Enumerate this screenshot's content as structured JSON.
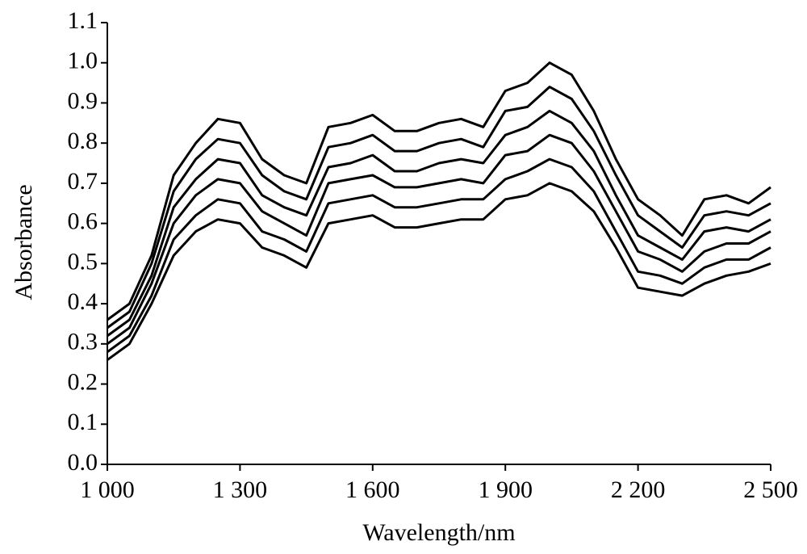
{
  "chart_data": {
    "type": "line",
    "x_label": "Wavelength/nm",
    "y_label": "Absorbance",
    "x": [
      1000,
      1050,
      1100,
      1150,
      1200,
      1250,
      1300,
      1350,
      1400,
      1450,
      1500,
      1550,
      1600,
      1650,
      1700,
      1750,
      1800,
      1850,
      1900,
      1950,
      2000,
      2050,
      2100,
      2150,
      2200,
      2250,
      2300,
      2350,
      2400,
      2450,
      2500
    ],
    "series": [
      {
        "color": "#000000",
        "values": [
          0.36,
          0.4,
          0.52,
          0.72,
          0.8,
          0.86,
          0.85,
          0.76,
          0.72,
          0.7,
          0.84,
          0.85,
          0.87,
          0.83,
          0.83,
          0.85,
          0.86,
          0.84,
          0.93,
          0.95,
          1.0,
          0.97,
          0.88,
          0.76,
          0.66,
          0.62,
          0.57,
          0.66,
          0.67,
          0.65,
          0.69
        ]
      },
      {
        "color": "#000000",
        "values": [
          0.34,
          0.38,
          0.5,
          0.68,
          0.76,
          0.81,
          0.8,
          0.72,
          0.68,
          0.66,
          0.79,
          0.8,
          0.82,
          0.78,
          0.78,
          0.8,
          0.81,
          0.79,
          0.88,
          0.89,
          0.94,
          0.91,
          0.83,
          0.72,
          0.62,
          0.58,
          0.54,
          0.62,
          0.63,
          0.62,
          0.65
        ]
      },
      {
        "color": "#000000",
        "values": [
          0.32,
          0.36,
          0.47,
          0.64,
          0.71,
          0.76,
          0.75,
          0.67,
          0.64,
          0.62,
          0.74,
          0.75,
          0.77,
          0.73,
          0.73,
          0.75,
          0.76,
          0.75,
          0.82,
          0.84,
          0.88,
          0.85,
          0.78,
          0.67,
          0.57,
          0.54,
          0.51,
          0.58,
          0.59,
          0.58,
          0.61
        ]
      },
      {
        "color": "#000000",
        "values": [
          0.3,
          0.34,
          0.45,
          0.6,
          0.67,
          0.71,
          0.7,
          0.63,
          0.6,
          0.57,
          0.7,
          0.71,
          0.72,
          0.69,
          0.69,
          0.7,
          0.71,
          0.7,
          0.77,
          0.78,
          0.82,
          0.8,
          0.73,
          0.63,
          0.53,
          0.51,
          0.48,
          0.53,
          0.55,
          0.55,
          0.58
        ]
      },
      {
        "color": "#000000",
        "values": [
          0.28,
          0.32,
          0.42,
          0.56,
          0.62,
          0.66,
          0.65,
          0.58,
          0.56,
          0.53,
          0.65,
          0.66,
          0.67,
          0.64,
          0.64,
          0.65,
          0.66,
          0.66,
          0.71,
          0.73,
          0.76,
          0.74,
          0.68,
          0.58,
          0.48,
          0.47,
          0.45,
          0.49,
          0.51,
          0.51,
          0.54
        ]
      },
      {
        "color": "#000000",
        "values": [
          0.26,
          0.3,
          0.4,
          0.52,
          0.58,
          0.61,
          0.6,
          0.54,
          0.52,
          0.49,
          0.6,
          0.61,
          0.62,
          0.59,
          0.59,
          0.6,
          0.61,
          0.61,
          0.66,
          0.67,
          0.7,
          0.68,
          0.63,
          0.54,
          0.44,
          0.43,
          0.42,
          0.45,
          0.47,
          0.48,
          0.5
        ]
      }
    ],
    "xlim": [
      1000,
      2500
    ],
    "xticks": [
      {
        "value": 1000,
        "label": "1 000"
      },
      {
        "value": 1300,
        "label": "1 300"
      },
      {
        "value": 1600,
        "label": "1 600"
      },
      {
        "value": 1900,
        "label": "1 900"
      },
      {
        "value": 2200,
        "label": "2 200"
      },
      {
        "value": 2500,
        "label": "2 500"
      }
    ],
    "ylim": [
      0,
      1.1
    ],
    "yticks": [
      {
        "value": 0,
        "label": "0.0"
      },
      0.1,
      0.2,
      0.3,
      0.4,
      0.5,
      0.6,
      0.7,
      0.8,
      0.9,
      {
        "value": 1,
        "label": "1.0"
      },
      1.1
    ],
    "grid": false
  }
}
